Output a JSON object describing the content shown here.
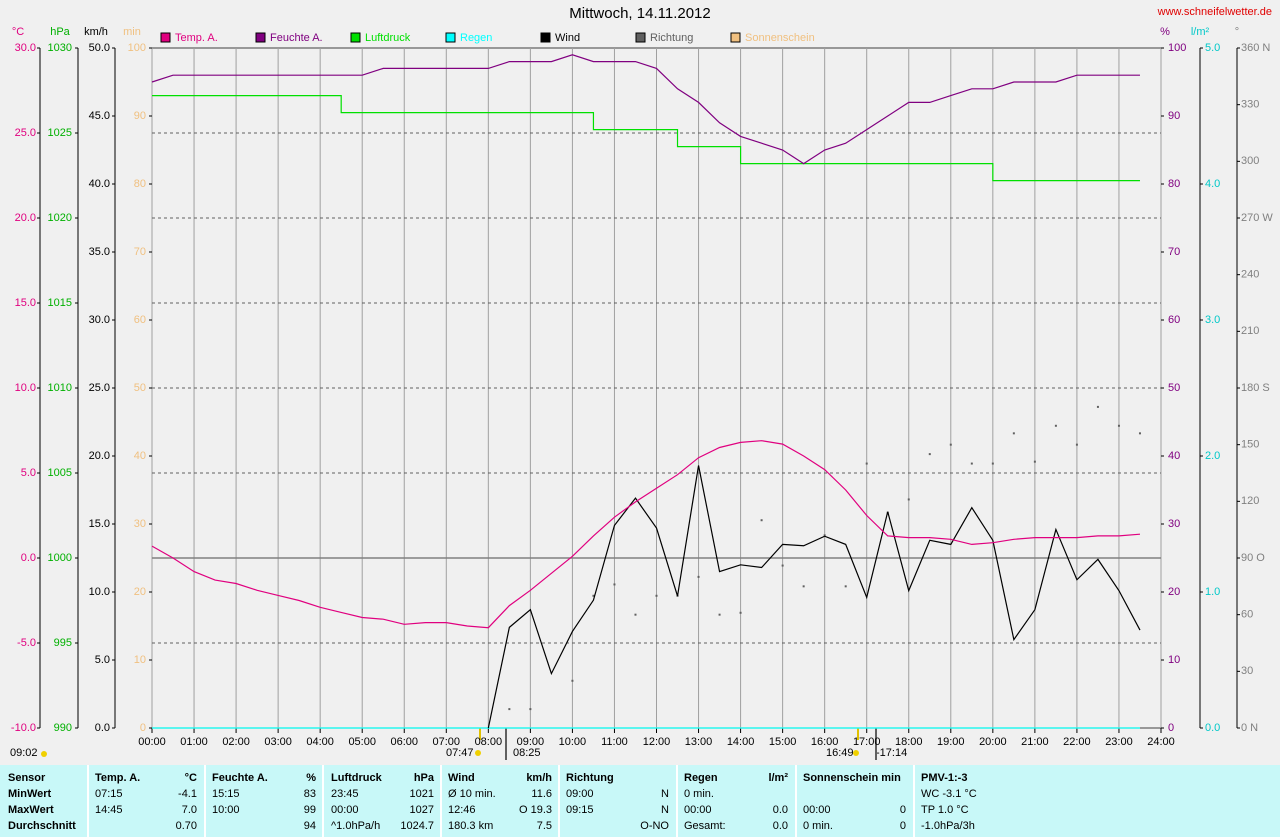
{
  "chart_data": {
    "type": "line",
    "title": "Mittwoch, 14.11.2012",
    "source": "www.schneifelwetter.de",
    "x": [
      "00:00",
      "00:30",
      "01:00",
      "01:30",
      "02:00",
      "02:30",
      "03:00",
      "03:30",
      "04:00",
      "04:30",
      "05:00",
      "05:30",
      "06:00",
      "06:30",
      "07:00",
      "07:30",
      "08:00",
      "08:30",
      "09:00",
      "09:30",
      "10:00",
      "10:30",
      "11:00",
      "11:30",
      "12:00",
      "12:30",
      "13:00",
      "13:30",
      "14:00",
      "14:30",
      "15:00",
      "15:30",
      "16:00",
      "16:30",
      "17:00",
      "17:30",
      "18:00",
      "18:30",
      "19:00",
      "19:30",
      "20:00",
      "20:30",
      "21:00",
      "21:30",
      "22:00",
      "22:30",
      "23:00",
      "23:30",
      "24:00"
    ],
    "xlim": [
      0,
      24
    ],
    "xticks": [
      {
        "value": 0,
        "label": "00:00"
      },
      {
        "value": 1,
        "label": "01:00"
      },
      {
        "value": 2,
        "label": "02:00"
      },
      {
        "value": 3,
        "label": "03:00"
      },
      {
        "value": 4,
        "label": "04:00"
      },
      {
        "value": 5,
        "label": "05:00"
      },
      {
        "value": 6,
        "label": "06:00"
      },
      {
        "value": 7,
        "label": "07:00"
      },
      {
        "value": 8,
        "label": "08:00"
      },
      {
        "value": 9,
        "label": "09:00"
      },
      {
        "value": 10,
        "label": "10:00"
      },
      {
        "value": 11,
        "label": "11:00"
      },
      {
        "value": 12,
        "label": "12:00"
      },
      {
        "value": 13,
        "label": "13:00"
      },
      {
        "value": 14,
        "label": "14:00"
      },
      {
        "value": 15,
        "label": "15:00"
      },
      {
        "value": 16,
        "label": "16:00"
      },
      {
        "value": 17,
        "label": "17:00"
      },
      {
        "value": 18,
        "label": "18:00"
      },
      {
        "value": 19,
        "label": "19:00"
      },
      {
        "value": 20,
        "label": "20:00"
      },
      {
        "value": 21,
        "label": "21:00"
      },
      {
        "value": 22,
        "label": "22:00"
      },
      {
        "value": 23,
        "label": "23:00"
      },
      {
        "value": 24,
        "label": "24:00"
      }
    ],
    "grid": true,
    "axes": [
      {
        "unit": "°C",
        "color": "#e0007f",
        "lim": [
          -10,
          30
        ],
        "ticks": [
          {
            "value": -10,
            "label": "-10.0"
          },
          {
            "value": -5,
            "label": "-5.0"
          },
          {
            "value": 0,
            "label": "0.0"
          },
          {
            "value": 5,
            "label": "5.0"
          },
          {
            "value": 10,
            "label": "10.0"
          },
          {
            "value": 15,
            "label": "15.0"
          },
          {
            "value": 20,
            "label": "20.0"
          },
          {
            "value": 25,
            "label": "25.0"
          },
          {
            "value": 30,
            "label": "30.0"
          }
        ]
      },
      {
        "unit": "hPa",
        "color": "#00b000",
        "lim": [
          990,
          1030
        ],
        "ticks": [
          990,
          995,
          1000,
          1005,
          1010,
          1015,
          1020,
          1025,
          1030
        ]
      },
      {
        "unit": "km/h",
        "color": "#000000",
        "lim": [
          0,
          50
        ],
        "ticks": [
          {
            "value": 0,
            "label": "0.0"
          },
          {
            "value": 5,
            "label": "5.0"
          },
          {
            "value": 10,
            "label": "10.0"
          },
          {
            "value": 15,
            "label": "15.0"
          },
          {
            "value": 20,
            "label": "20.0"
          },
          {
            "value": 25,
            "label": "25.0"
          },
          {
            "value": 30,
            "label": "30.0"
          },
          {
            "value": 35,
            "label": "35.0"
          },
          {
            "value": 40,
            "label": "40.0"
          },
          {
            "value": 45,
            "label": "45.0"
          },
          {
            "value": 50,
            "label": "50.0"
          }
        ]
      },
      {
        "unit": "min",
        "color": "#f0c080",
        "lim": [
          0,
          100
        ],
        "ticks": [
          0,
          10,
          20,
          30,
          40,
          50,
          60,
          70,
          80,
          90,
          100
        ]
      },
      {
        "unit": "%",
        "color": "#800080",
        "lim": [
          0,
          100
        ],
        "ticks": [
          0,
          10,
          20,
          30,
          40,
          50,
          60,
          70,
          80,
          90,
          100
        ]
      },
      {
        "unit": "l/m²",
        "color": "#00c8c8",
        "lim": [
          0,
          5
        ],
        "ticks": [
          {
            "value": 0,
            "label": "0.0"
          },
          {
            "value": 1,
            "label": "1.0"
          },
          {
            "value": 2,
            "label": "2.0"
          },
          {
            "value": 3,
            "label": "3.0"
          },
          {
            "value": 4,
            "label": "4.0"
          },
          {
            "value": 5,
            "label": "5.0"
          }
        ]
      },
      {
        "unit": "°",
        "color": "#808080",
        "lim": [
          0,
          360
        ],
        "ticks": [
          {
            "value": 0,
            "label": "0 N"
          },
          30,
          60,
          {
            "value": 90,
            "label": "90 O"
          },
          120,
          150,
          {
            "value": 180,
            "label": "180 S"
          },
          210,
          240,
          {
            "value": 270,
            "label": "270 W"
          },
          300,
          330,
          {
            "value": 360,
            "label": "360 N"
          }
        ]
      }
    ],
    "series": [
      {
        "name": "Temp. A.",
        "color": "#e0007f",
        "axis": 0,
        "style": "line",
        "values": [
          0.7,
          0.0,
          -0.8,
          -1.3,
          -1.5,
          -1.9,
          -2.2,
          -2.5,
          -2.9,
          -3.2,
          -3.5,
          -3.6,
          -3.9,
          -3.8,
          -3.8,
          -4.0,
          -4.1,
          -2.8,
          -1.9,
          -0.9,
          0.1,
          1.3,
          2.4,
          3.3,
          4.1,
          4.9,
          5.9,
          6.5,
          6.8,
          6.9,
          6.7,
          6.0,
          5.2,
          4.0,
          2.5,
          1.3,
          1.2,
          1.2,
          1.1,
          0.8,
          0.9,
          1.1,
          1.2,
          1.2,
          1.2,
          1.3,
          1.3,
          1.4,
          null
        ]
      },
      {
        "name": "Feuchte A.",
        "color": "#800080",
        "axis": 4,
        "style": "line",
        "values": [
          95,
          96,
          96,
          96,
          96,
          96,
          96,
          96,
          96,
          96,
          96,
          97,
          97,
          97,
          97,
          97,
          97,
          98,
          98,
          98,
          99,
          98,
          98,
          98,
          97,
          94,
          92,
          89,
          87,
          86,
          85,
          83,
          85,
          86,
          88,
          90,
          92,
          92,
          93,
          94,
          94,
          95,
          95,
          95,
          96,
          96,
          96,
          96,
          null
        ]
      },
      {
        "name": "Luftdruck",
        "color": "#00e000",
        "axis": 1,
        "style": "step",
        "values": [
          1027.2,
          1027.2,
          1027.2,
          1027.2,
          1027.2,
          1027.2,
          1027.2,
          1027.2,
          1027.2,
          1026.2,
          1026.2,
          1026.2,
          1026.2,
          1026.2,
          1026.2,
          1026.2,
          1026.2,
          1026.2,
          1026.2,
          1026.2,
          1026.2,
          1025.2,
          1025.2,
          1025.2,
          1025.2,
          1024.2,
          1024.2,
          1024.2,
          1023.2,
          1023.2,
          1023.2,
          1023.2,
          1023.2,
          1023.2,
          1023.2,
          1023.2,
          1023.2,
          1023.2,
          1023.2,
          1023.2,
          1022.2,
          1022.2,
          1022.2,
          1022.2,
          1022.2,
          1022.2,
          1022.2,
          1022.2,
          null
        ]
      },
      {
        "name": "Regen",
        "color": "#00ffff",
        "axis": 5,
        "style": "line",
        "values": [
          0,
          0,
          0,
          0,
          0,
          0,
          0,
          0,
          0,
          0,
          0,
          0,
          0,
          0,
          0,
          0,
          0,
          0,
          0,
          0,
          0,
          0,
          0,
          0,
          0,
          0,
          0,
          0,
          0,
          0,
          0,
          0,
          0,
          0,
          0,
          0,
          0,
          0,
          0,
          0,
          0,
          0,
          0,
          0,
          0,
          0,
          0,
          0,
          null
        ]
      },
      {
        "name": "Wind",
        "color": "#000000",
        "axis": 2,
        "style": "line",
        "values": [
          null,
          null,
          null,
          null,
          null,
          null,
          null,
          null,
          null,
          null,
          null,
          null,
          null,
          null,
          null,
          null,
          0,
          7.4,
          8.7,
          4.0,
          7.1,
          9.4,
          14.9,
          16.9,
          14.7,
          9.7,
          19.3,
          11.5,
          12.0,
          11.8,
          13.5,
          13.4,
          14.1,
          13.5,
          9.6,
          15.9,
          10.1,
          13.8,
          13.5,
          16.2,
          13.8,
          6.5,
          8.7,
          14.6,
          10.9,
          12.4,
          10.1,
          7.2,
          null
        ]
      },
      {
        "name": "Richtung",
        "color": "#606060",
        "axis": 6,
        "style": "dots",
        "values": [
          null,
          null,
          null,
          null,
          null,
          null,
          null,
          null,
          null,
          null,
          null,
          null,
          null,
          null,
          null,
          null,
          null,
          10,
          10,
          null,
          25,
          70,
          76,
          60,
          70,
          70,
          80,
          60,
          61,
          110,
          86,
          75,
          102,
          75,
          140,
          114,
          121,
          145,
          150,
          140,
          140,
          156,
          141,
          160,
          150,
          170,
          160,
          156,
          null
        ]
      },
      {
        "name": "Sonnenschein",
        "color": "#f0c080",
        "axis": 3,
        "style": "line",
        "values": [
          0,
          0,
          0,
          0,
          0,
          0,
          0,
          0,
          0,
          0,
          0,
          0,
          0,
          0,
          0,
          0,
          0,
          0,
          0,
          0,
          0,
          0,
          0,
          0,
          0,
          0,
          0,
          0,
          0,
          0,
          0,
          0,
          0,
          0,
          0,
          0,
          0,
          0,
          0,
          0,
          0,
          0,
          0,
          0,
          0,
          0,
          0,
          0,
          null
        ]
      }
    ],
    "annotations": [
      "07:47",
      "08:25",
      "16:49",
      "-17:14",
      "09:02"
    ]
  },
  "table": {
    "rows": [
      [
        "Sensor",
        "Temp. A.",
        "°C",
        "Feuchte A.",
        "%",
        "Luftdruck",
        "hPa",
        "Wind",
        "km/h",
        "Richtung",
        null,
        "Regen",
        "l/m²",
        "Sonnenschein min",
        null,
        "PMV-1:-3"
      ],
      [
        "MinWert",
        "07:15",
        "-4.1",
        "15:15",
        "83",
        "23:45",
        "1021",
        "Ø 10 min.",
        "11.6",
        "09:00",
        "N",
        "0 min.",
        null,
        null,
        null,
        "WC -3.1 °C"
      ],
      [
        "MaxWert",
        "14:45",
        "7.0",
        "10:00",
        "99",
        "00:00",
        "1027",
        "12:46",
        "O 19.3",
        "09:15",
        "N",
        "00:00",
        "0.0",
        "00:00",
        "0",
        "TP 1.0 °C"
      ],
      [
        "Durchschnitt",
        null,
        "0.70",
        null,
        "94",
        "^1.0hPa/h",
        "1024.7",
        "180.3 km",
        "7.5",
        null,
        "O-NO",
        "Gesamt:",
        "0.0",
        "0 min.",
        "0",
        "-1.0hPa/3h"
      ]
    ]
  }
}
